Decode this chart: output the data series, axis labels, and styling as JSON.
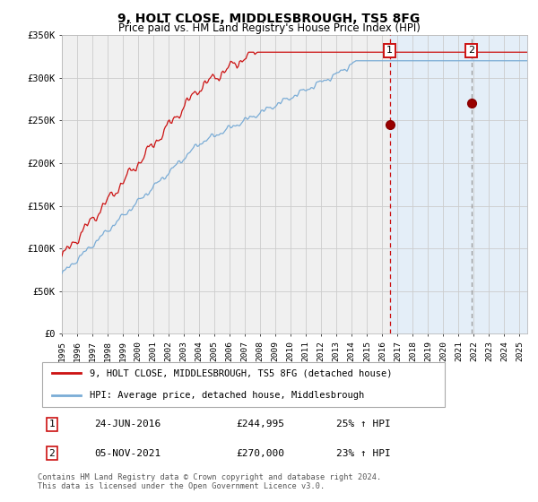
{
  "title": "9, HOLT CLOSE, MIDDLESBROUGH, TS5 8FG",
  "subtitle": "Price paid vs. HM Land Registry's House Price Index (HPI)",
  "ylim": [
    0,
    350000
  ],
  "yticks": [
    0,
    50000,
    100000,
    150000,
    200000,
    250000,
    300000,
    350000
  ],
  "ytick_labels": [
    "£0",
    "£50K",
    "£100K",
    "£150K",
    "£200K",
    "£250K",
    "£300K",
    "£350K"
  ],
  "hpi_color": "#7aacd6",
  "price_color": "#cc1111",
  "shade_color": "#ddeeff",
  "grid_color": "#cccccc",
  "background_color": "#f0f0f0",
  "sale1_year": 2016.48,
  "sale1_price": 244995,
  "sale2_year": 2021.84,
  "sale2_price": 270000,
  "annotation1": {
    "label": "1",
    "date": "24-JUN-2016",
    "price": "£244,995",
    "change": "25% ↑ HPI"
  },
  "annotation2": {
    "label": "2",
    "date": "05-NOV-2021",
    "price": "£270,000",
    "change": "23% ↑ HPI"
  },
  "legend_line1": "9, HOLT CLOSE, MIDDLESBROUGH, TS5 8FG (detached house)",
  "legend_line2": "HPI: Average price, detached house, Middlesbrough",
  "footer": "Contains HM Land Registry data © Crown copyright and database right 2024.\nThis data is licensed under the Open Government Licence v3.0."
}
